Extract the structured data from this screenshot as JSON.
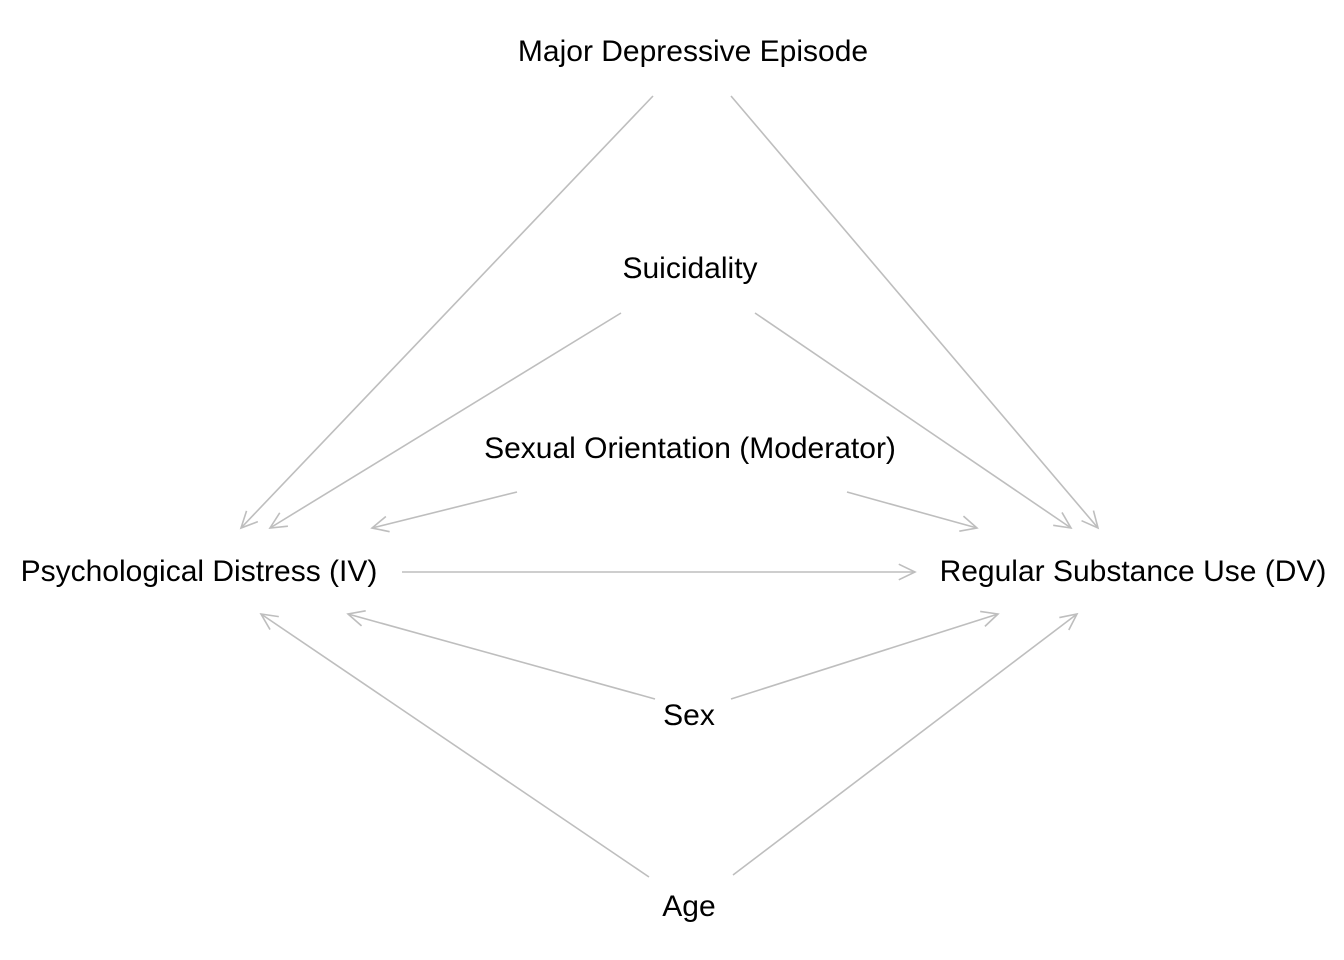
{
  "nodes": {
    "major_depressive_episode": "Major Depressive Episode",
    "suicidality": "Suicidality",
    "sexual_orientation": "Sexual Orientation (Moderator)",
    "psychological_distress": "Psychological Distress (IV)",
    "regular_substance_use": "Regular Substance Use (DV)",
    "sex": "Sex",
    "age": "Age"
  },
  "edges": [
    {
      "from": "major_depressive_episode",
      "to": "psychological_distress"
    },
    {
      "from": "major_depressive_episode",
      "to": "regular_substance_use"
    },
    {
      "from": "suicidality",
      "to": "psychological_distress"
    },
    {
      "from": "suicidality",
      "to": "regular_substance_use"
    },
    {
      "from": "sexual_orientation",
      "to": "psychological_distress"
    },
    {
      "from": "sexual_orientation",
      "to": "regular_substance_use"
    },
    {
      "from": "psychological_distress",
      "to": "regular_substance_use"
    },
    {
      "from": "sex",
      "to": "psychological_distress"
    },
    {
      "from": "sex",
      "to": "regular_substance_use"
    },
    {
      "from": "age",
      "to": "psychological_distress"
    },
    {
      "from": "age",
      "to": "regular_substance_use"
    }
  ],
  "colors": {
    "edge": "#bebebe",
    "text": "#000000",
    "background": "#ffffff"
  }
}
